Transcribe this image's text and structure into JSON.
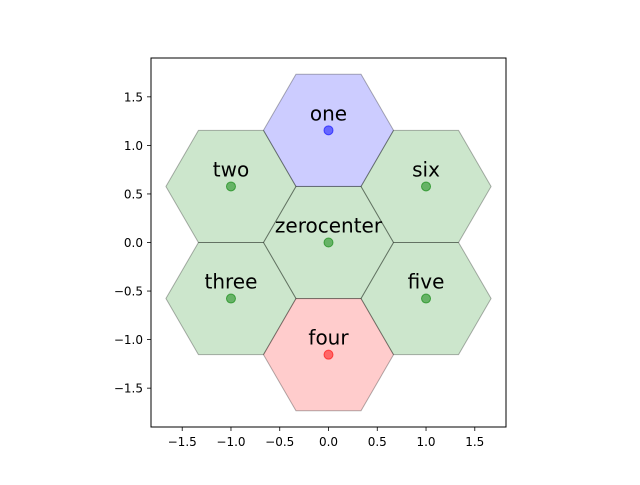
{
  "chart_data": {
    "type": "scatter",
    "title": "",
    "xlabel": "",
    "ylabel": "",
    "xlim": [
      -1.82,
      1.82
    ],
    "ylim": [
      -1.9,
      1.9
    ],
    "x_ticks": [
      -1.5,
      -1.0,
      -0.5,
      0.0,
      0.5,
      1.0,
      1.5
    ],
    "x_tick_labels": [
      "−1.5",
      "−1.0",
      "−0.5",
      "0.0",
      "0.5",
      "1.0",
      "1.5"
    ],
    "y_ticks": [
      1.5,
      1.0,
      0.5,
      0.0,
      -0.5,
      -1.0,
      -1.5
    ],
    "y_tick_labels": [
      "1.5",
      "1.0",
      "0.5",
      "0.0",
      "−0.5",
      "−1.0",
      "−1.5"
    ],
    "grid": false,
    "hex_radius": 0.667,
    "cells": [
      {
        "label": "zerocenter",
        "x": 0.0,
        "y": 0.0,
        "fill": "#008000",
        "point": "#008000"
      },
      {
        "label": "one",
        "x": 0.0,
        "y": 1.155,
        "fill": "#0000ff",
        "point": "#0000ff"
      },
      {
        "label": "two",
        "x": -1.0,
        "y": 0.577,
        "fill": "#008000",
        "point": "#008000"
      },
      {
        "label": "three",
        "x": -1.0,
        "y": -0.577,
        "fill": "#008000",
        "point": "#008000"
      },
      {
        "label": "four",
        "x": 0.0,
        "y": -1.155,
        "fill": "#ff0000",
        "point": "#ff0000"
      },
      {
        "label": "five",
        "x": 1.0,
        "y": -0.577,
        "fill": "#008000",
        "point": "#008000"
      },
      {
        "label": "six",
        "x": 1.0,
        "y": 0.577,
        "fill": "#008000",
        "point": "#008000"
      }
    ]
  }
}
